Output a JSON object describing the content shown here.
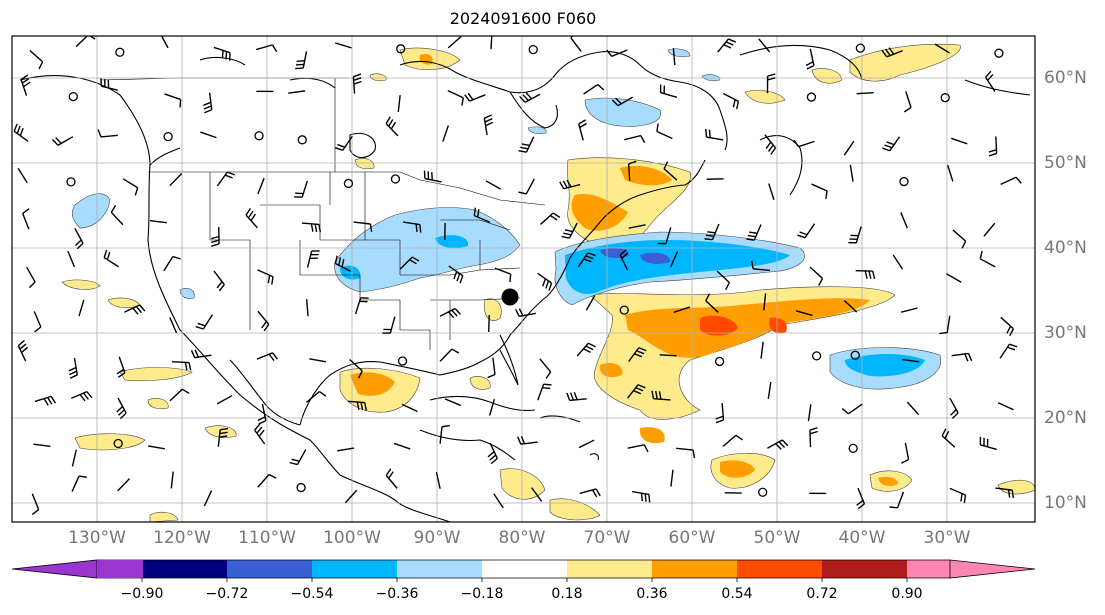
{
  "title": "2024091600 F060",
  "longitude_labels": [
    "130°W",
    "120°W",
    "110°W",
    "100°W",
    "90°W",
    "80°W",
    "70°W",
    "60°W",
    "50°W",
    "40°W",
    "30°W"
  ],
  "latitude_labels": [
    "60°N",
    "50°N",
    "40°N",
    "30°N",
    "20°N",
    "10°N"
  ],
  "colorbar": {
    "tick_labels": [
      "−0.90",
      "−0.72",
      "−0.54",
      "−0.36",
      "−0.18",
      "0.18",
      "0.36",
      "0.54",
      "0.72",
      "0.90"
    ],
    "colors": [
      "#9a35d0",
      "#00007f",
      "#3a5fd4",
      "#00b7ff",
      "#a8dcff",
      "#ffffff",
      "#ffea8c",
      "#ff9e00",
      "#ff4a00",
      "#b01c1c",
      "#ff85b2"
    ]
  },
  "marker": {
    "name": "station-marker",
    "color": "#000000"
  },
  "wind_barb_color": "#000000",
  "coastline_color": "#000000",
  "gridline_color": "#b0b0b0"
}
